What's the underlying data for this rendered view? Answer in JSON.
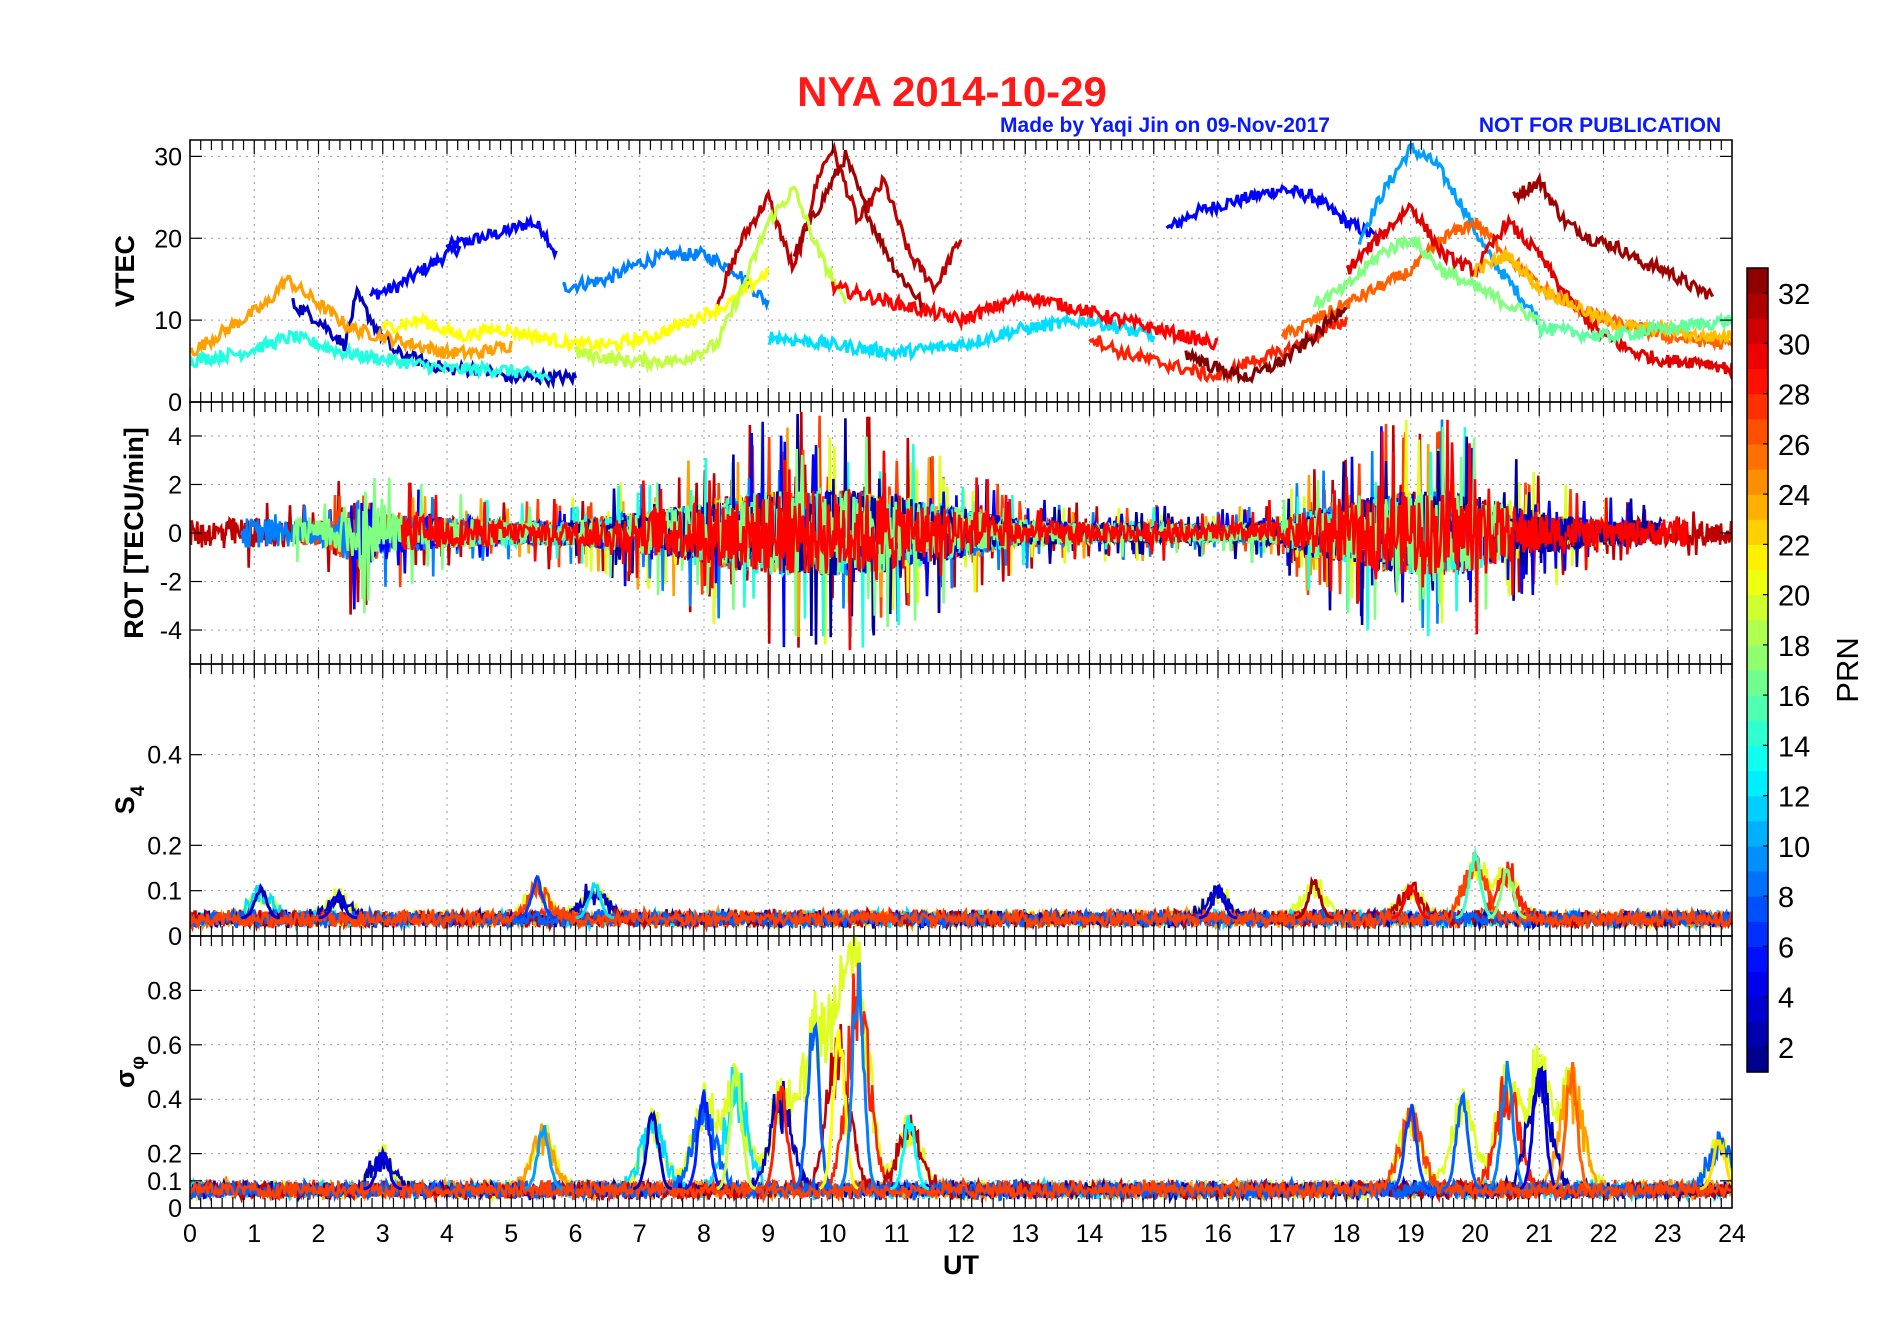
{
  "title": "NYA   2014-10-29",
  "credit": "Made by Yaqi Jin on 09-Nov-2017",
  "notice": "NOT FOR PUBLICATION",
  "colors": {
    "title": "#ff1a1a",
    "credit": "#0a1aff"
  },
  "chart_data": [
    {
      "type": "line",
      "panel": "vtec",
      "ylabel": "VTEC",
      "xlim": [
        0,
        24
      ],
      "ylim": [
        0,
        32
      ],
      "yticks": [
        0,
        10,
        20,
        30
      ],
      "ytick_labels": [
        "0",
        "10",
        "20",
        "30"
      ],
      "series": [
        {
          "prn": 5,
          "x": [
            4.0,
            4.5,
            5.0,
            5.3,
            5.5,
            5.7
          ],
          "y": [
            19,
            20,
            21,
            22,
            21,
            18
          ]
        },
        {
          "prn": 5,
          "x": [
            2.8,
            3.2,
            3.8,
            4.2
          ],
          "y": [
            13,
            14,
            17,
            19
          ]
        },
        {
          "prn": 5,
          "x": [
            15.2,
            15.6,
            16.0,
            16.5,
            17.0,
            17.5,
            18.0,
            18.5
          ],
          "y": [
            21,
            23,
            24,
            25,
            26,
            25,
            22,
            20
          ]
        },
        {
          "prn": 9,
          "x": [
            5.8,
            6.5,
            7.0,
            7.5,
            8.0,
            8.5,
            9.0
          ],
          "y": [
            14,
            15,
            17,
            18,
            18,
            16,
            12
          ]
        },
        {
          "prn": 10,
          "x": [
            18.2,
            18.6,
            19.0,
            19.4,
            19.8,
            20.2,
            20.6,
            21.0
          ],
          "y": [
            20,
            26,
            31,
            29,
            24,
            18,
            14,
            10
          ]
        },
        {
          "prn": 31,
          "x": [
            8.2,
            8.6,
            9.0,
            9.4,
            9.8,
            10.0,
            10.4,
            10.8,
            11.2,
            11.6,
            12.0
          ],
          "y": [
            12,
            20,
            25,
            16,
            28,
            31,
            22,
            27,
            18,
            14,
            20
          ]
        },
        {
          "prn": 32,
          "x": [
            9.4,
            9.8,
            10.2,
            10.6,
            11.0,
            11.4
          ],
          "y": [
            18,
            24,
            30,
            22,
            16,
            12
          ]
        },
        {
          "prn": 32,
          "x": [
            20.6,
            21.0,
            21.4,
            21.8,
            22.2,
            22.6,
            23.0,
            23.4,
            23.7
          ],
          "y": [
            25,
            27,
            22,
            20,
            19,
            17,
            16,
            14,
            13
          ]
        },
        {
          "prn": 3,
          "x": [
            1.6,
            2.0,
            2.4,
            2.6,
            2.9,
            3.2,
            3.6,
            4.0,
            4.5,
            5.0,
            5.5,
            6.0
          ],
          "y": [
            12,
            10,
            7,
            13,
            9,
            6,
            5,
            4,
            4,
            3,
            3,
            3
          ]
        },
        {
          "prn": 24,
          "x": [
            0.0,
            0.6,
            1.2,
            1.5,
            2.0,
            2.5,
            3.0,
            3.5,
            4.0,
            4.5,
            5.0
          ],
          "y": [
            6,
            9,
            12,
            15,
            12,
            9,
            8,
            7,
            6,
            6,
            7
          ]
        },
        {
          "prn": 14,
          "x": [
            0.0,
            0.8,
            1.6,
            2.4,
            3.2,
            4.0,
            4.8,
            5.6
          ],
          "y": [
            5,
            6,
            8,
            6,
            5,
            4,
            4,
            3
          ]
        },
        {
          "prn": 21,
          "x": [
            3.0,
            3.6,
            4.2,
            4.8,
            5.4,
            6.0,
            6.6,
            7.2,
            7.8,
            8.4,
            9.0
          ],
          "y": [
            9,
            10,
            8,
            9,
            8,
            7,
            7,
            8,
            10,
            12,
            16
          ]
        },
        {
          "prn": 19,
          "x": [
            6.0,
            6.8,
            7.6,
            8.2,
            8.6,
            9.0,
            9.4,
            9.8,
            10.2
          ],
          "y": [
            6,
            5,
            5,
            7,
            14,
            22,
            26,
            18,
            12
          ]
        },
        {
          "prn": 12,
          "x": [
            9.0,
            10.0,
            11.0,
            12.0,
            13.0,
            14.0,
            15.0
          ],
          "y": [
            8,
            7,
            6,
            7,
            9,
            10,
            8
          ]
        },
        {
          "prn": 29,
          "x": [
            10.0,
            11.0,
            12.0,
            13.0,
            14.0,
            15.0,
            16.0
          ],
          "y": [
            14,
            12,
            10,
            13,
            11,
            9,
            7
          ]
        },
        {
          "prn": 26,
          "x": [
            17.0,
            17.5,
            18.0,
            18.5,
            19.0,
            19.5,
            20.0,
            20.5,
            21.0,
            22.0,
            23.0,
            24.0
          ],
          "y": [
            8,
            10,
            12,
            14,
            16,
            20,
            22,
            18,
            14,
            10,
            8,
            7
          ]
        },
        {
          "prn": 30,
          "x": [
            18.0,
            18.5,
            19.0,
            19.5,
            20.0,
            20.5,
            21.0,
            21.5,
            22.0,
            22.5,
            23.0,
            23.5,
            24.0
          ],
          "y": [
            16,
            20,
            24,
            18,
            16,
            22,
            18,
            12,
            8,
            6,
            5,
            5,
            4
          ]
        },
        {
          "prn": 17,
          "x": [
            17.5,
            18.0,
            18.5,
            19.0,
            19.5,
            20.0,
            20.5,
            21.0
          ],
          "y": [
            12,
            14,
            18,
            20,
            16,
            14,
            12,
            10
          ]
        },
        {
          "prn": 23,
          "x": [
            20.0,
            20.5,
            21.0,
            21.5,
            22.0,
            22.5,
            23.0,
            23.5,
            24.0
          ],
          "y": [
            16,
            18,
            14,
            12,
            10,
            9,
            9,
            8,
            8
          ]
        },
        {
          "prn": 28,
          "x": [
            14.0,
            14.5,
            15.0,
            15.5,
            16.0,
            16.5,
            17.0,
            17.5,
            18.0
          ],
          "y": [
            8,
            6,
            5,
            4,
            3,
            5,
            6,
            8,
            10
          ]
        },
        {
          "prn": 33,
          "x": [
            15.5,
            16.0,
            16.5,
            17.0,
            17.5,
            18.0
          ],
          "y": [
            6,
            4,
            3,
            5,
            8,
            12
          ]
        },
        {
          "prn": 16,
          "x": [
            21.0,
            22.0,
            23.0,
            24.0
          ],
          "y": [
            9,
            8,
            9,
            10
          ]
        }
      ]
    },
    {
      "type": "line",
      "panel": "rot",
      "ylabel": "ROT [TECU/min]",
      "xlim": [
        0,
        24
      ],
      "ylim": [
        -5.4,
        5.4
      ],
      "yticks": [
        -4,
        -2,
        0,
        2,
        4
      ],
      "ytick_labels": [
        "-4",
        "-2",
        "0",
        "2",
        "4"
      ],
      "envelope": {
        "x": [
          0,
          1,
          2,
          2.7,
          3,
          4,
          5,
          6,
          7,
          8,
          8.5,
          9,
          9.5,
          10,
          10.5,
          11,
          11.5,
          12,
          13,
          14,
          15,
          16,
          17,
          17.5,
          18,
          18.5,
          19,
          19.5,
          20,
          20.5,
          21,
          22,
          23,
          24
        ],
        "amplitude": [
          1.5,
          1.8,
          1.5,
          4.5,
          2.5,
          1.8,
          1.5,
          1.5,
          2.5,
          3.5,
          4.5,
          5.0,
          5.0,
          5.0,
          5.0,
          4.5,
          3.5,
          3.0,
          1.5,
          1.2,
          1.2,
          1.0,
          1.5,
          3.0,
          3.5,
          4.5,
          5.0,
          5.0,
          4.5,
          3.5,
          2.5,
          1.5,
          1.5,
          1.5
        ]
      },
      "colored_series_prn": [
        31,
        27,
        24,
        20,
        9,
        5,
        14,
        2,
        17,
        29
      ]
    },
    {
      "type": "line",
      "panel": "s4",
      "ylabel": "S",
      "ylabel_sub": "4",
      "xlim": [
        0,
        24
      ],
      "ylim": [
        0,
        0.6
      ],
      "yticks": [
        0,
        0.1,
        0.2,
        0.4
      ],
      "ytick_labels": [
        "0",
        "0.1",
        "0.2",
        "0.4"
      ],
      "base_level": 0.04,
      "peaks": [
        {
          "x": 1.1,
          "y": 0.11,
          "prn": 3
        },
        {
          "x": 2.3,
          "y": 0.1,
          "prn": 4
        },
        {
          "x": 5.4,
          "y": 0.13,
          "prn": 7
        },
        {
          "x": 6.3,
          "y": 0.12,
          "prn": 12
        },
        {
          "x": 16.0,
          "y": 0.11,
          "prn": 4
        },
        {
          "x": 17.5,
          "y": 0.13,
          "prn": 32
        },
        {
          "x": 19.0,
          "y": 0.12,
          "prn": 29
        },
        {
          "x": 20.0,
          "y": 0.19,
          "prn": 15
        },
        {
          "x": 20.5,
          "y": 0.16,
          "prn": 17
        }
      ]
    },
    {
      "type": "line",
      "panel": "sigma_phi",
      "ylabel": "σ",
      "ylabel_sub": "φ",
      "xlim": [
        0,
        24
      ],
      "ylim": [
        0,
        1.0
      ],
      "yticks": [
        0,
        0.1,
        0.2,
        0.4,
        0.6,
        0.8
      ],
      "ytick_labels": [
        "0",
        "0.1",
        "0.2",
        "0.4",
        "0.6",
        "0.8"
      ],
      "xlabel": "UT",
      "xticks": [
        0,
        1,
        2,
        3,
        4,
        5,
        6,
        7,
        8,
        9,
        10,
        11,
        12,
        13,
        14,
        15,
        16,
        17,
        18,
        19,
        20,
        21,
        22,
        23,
        24
      ],
      "xtick_labels": [
        "0",
        "1",
        "2",
        "3",
        "4",
        "5",
        "6",
        "7",
        "8",
        "9",
        "10",
        "11",
        "12",
        "13",
        "14",
        "15",
        "16",
        "17",
        "18",
        "19",
        "20",
        "21",
        "22",
        "23",
        "24"
      ],
      "base_level": 0.07,
      "peaks": [
        {
          "x": 3.0,
          "y": 0.22,
          "prn": 4
        },
        {
          "x": 5.5,
          "y": 0.32,
          "prn": 10
        },
        {
          "x": 7.2,
          "y": 0.38,
          "prn": 3
        },
        {
          "x": 8.0,
          "y": 0.45,
          "prn": 6
        },
        {
          "x": 8.5,
          "y": 0.55,
          "prn": 19
        },
        {
          "x": 9.2,
          "y": 0.5,
          "prn": 28
        },
        {
          "x": 9.7,
          "y": 0.76,
          "prn": 8
        },
        {
          "x": 10.1,
          "y": 0.72,
          "prn": 21
        },
        {
          "x": 10.4,
          "y": 0.95,
          "prn": 9
        },
        {
          "x": 11.2,
          "y": 0.35,
          "prn": 13
        },
        {
          "x": 19.0,
          "y": 0.4,
          "prn": 7
        },
        {
          "x": 19.8,
          "y": 0.45,
          "prn": 8
        },
        {
          "x": 20.5,
          "y": 0.55,
          "prn": 9
        },
        {
          "x": 21.0,
          "y": 0.6,
          "prn": 4
        },
        {
          "x": 21.5,
          "y": 0.55,
          "prn": 26
        },
        {
          "x": 23.8,
          "y": 0.28,
          "prn": 22
        }
      ]
    },
    {
      "type": "heatmap",
      "panel": "colorbar",
      "label": "PRN",
      "range": [
        1,
        33
      ],
      "ticks": [
        2,
        4,
        6,
        8,
        10,
        12,
        14,
        16,
        18,
        20,
        22,
        24,
        26,
        28,
        30,
        32
      ],
      "tick_labels": [
        "2",
        "4",
        "6",
        "8",
        "10",
        "12",
        "14",
        "16",
        "18",
        "20",
        "22",
        "24",
        "26",
        "28",
        "30",
        "32"
      ],
      "colormap": "jet"
    }
  ]
}
